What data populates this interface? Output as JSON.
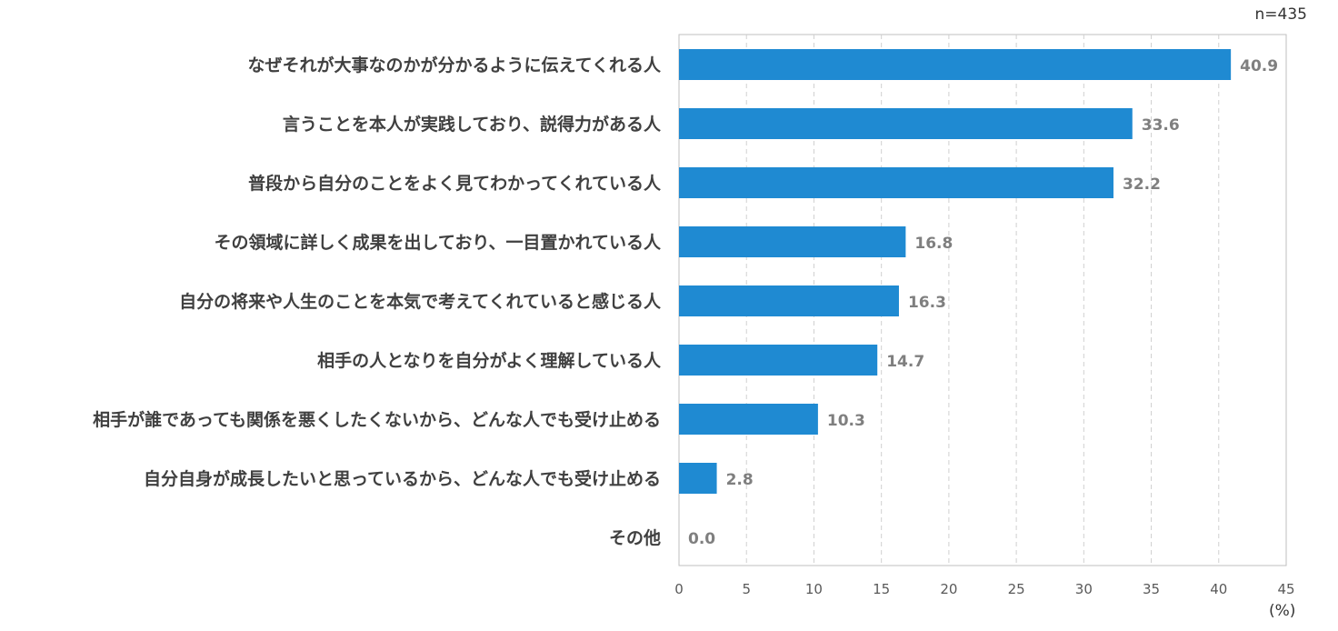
{
  "sample_size": "n=435",
  "unit": "(%)",
  "colors": {
    "bar": "#1f8ad2",
    "grid": "#d0d0d0",
    "axis": "#bfbfbf",
    "value_label": "#7f7f7f"
  },
  "chart_data": {
    "type": "bar",
    "orientation": "horizontal",
    "categories": [
      "なぜそれが大事なのかが分かるように伝えてくれる人",
      "言うことを本人が実践しており、説得力がある人",
      "普段から自分のことをよく見てわかってくれている人",
      "その領域に詳しく成果を出しており、一目置かれている人",
      "自分の将来や人生のことを本気で考えてくれていると感じる人",
      "相手の人となりを自分がよく理解している人",
      "相手が誰であっても関係を悪くしたくないから、どんな人でも受け止める",
      "自分自身が成長したいと思っているから、どんな人でも受け止める",
      "その他"
    ],
    "values": [
      40.9,
      33.6,
      32.2,
      16.8,
      16.3,
      14.7,
      10.3,
      2.8,
      0.0
    ],
    "value_labels": [
      "40.9",
      "33.6",
      "32.2",
      "16.8",
      "16.3",
      "14.7",
      "10.3",
      "2.8",
      "0.0"
    ],
    "xlim": [
      0,
      45
    ],
    "xticks": [
      0,
      5,
      10,
      15,
      20,
      25,
      30,
      35,
      40,
      45
    ],
    "grid": "vertical dashed",
    "title": "",
    "xlabel": "(%)",
    "ylabel": ""
  }
}
